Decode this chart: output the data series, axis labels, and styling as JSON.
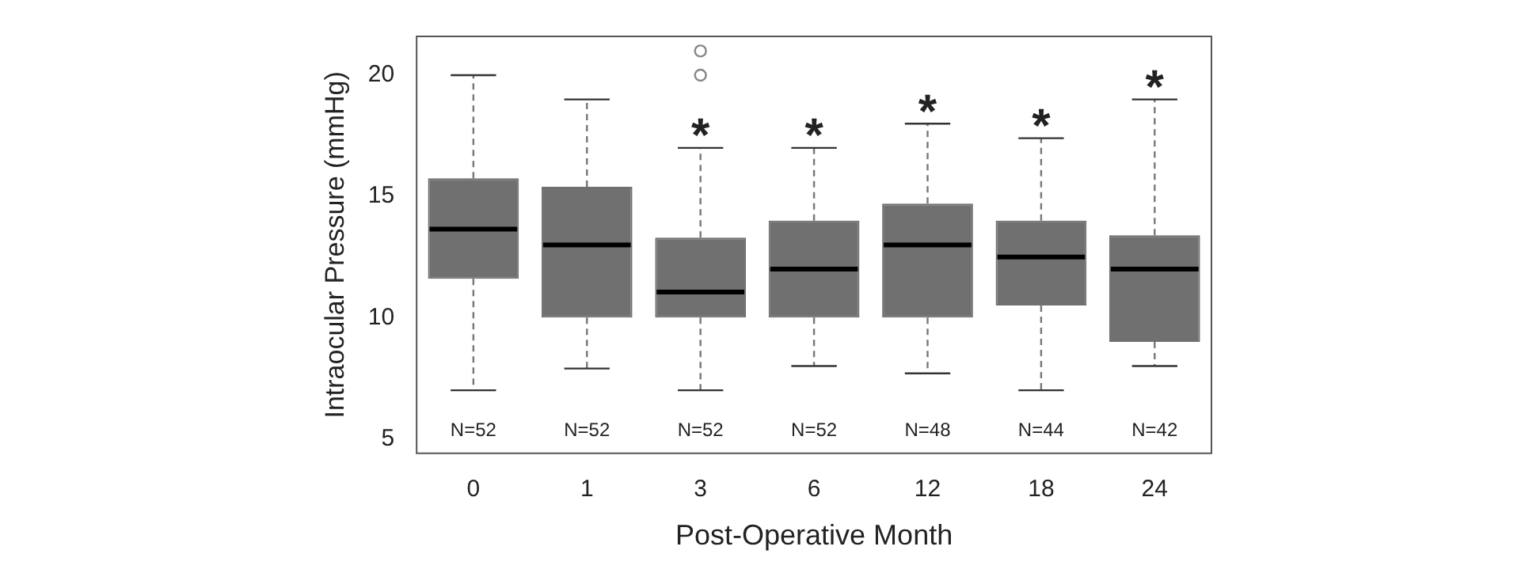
{
  "chart_data": {
    "type": "box",
    "xlabel": "Post-Operative Month",
    "ylabel": "Intraocular Pressure (mmHg)",
    "categories": [
      "0",
      "1",
      "3",
      "6",
      "12",
      "18",
      "24"
    ],
    "color": "#707070",
    "boxes": [
      {
        "low": 7,
        "q1": 11.6,
        "median": 13.65,
        "q3": 15.75,
        "high": 20
      },
      {
        "low": 7.9,
        "q1": 10,
        "median": 13,
        "q3": 15.4,
        "high": 19
      },
      {
        "low": 7,
        "q1": 10,
        "median": 11.05,
        "q3": 13.3,
        "high": 17,
        "outliers": [
          20,
          21
        ]
      },
      {
        "low": 8,
        "q1": 10,
        "median": 12,
        "q3": 14,
        "high": 17
      },
      {
        "low": 7.7,
        "q1": 10,
        "median": 13,
        "q3": 14.7,
        "high": 18
      },
      {
        "low": 7,
        "q1": 10.5,
        "median": 12.5,
        "q3": 14,
        "high": 17.4
      },
      {
        "low": 8,
        "q1": 9,
        "median": 12,
        "q3": 13.4,
        "high": 19
      }
    ],
    "ylim": [
      4.4,
      21.6
    ],
    "yticks": [
      5,
      10,
      15,
      20
    ],
    "grid": false,
    "legend": false,
    "annotations": [
      {
        "text": "*",
        "x": "3",
        "y": 17
      },
      {
        "text": "*",
        "x": "6",
        "y": 17
      },
      {
        "text": "*",
        "x": "12",
        "y": 18
      },
      {
        "text": "*",
        "x": "18",
        "y": 17.4
      },
      {
        "text": "*",
        "x": "24",
        "y": 19
      },
      "N=52",
      "N=52",
      "N=52",
      "N=52",
      "N=48",
      "N=44",
      "N=42"
    ]
  }
}
